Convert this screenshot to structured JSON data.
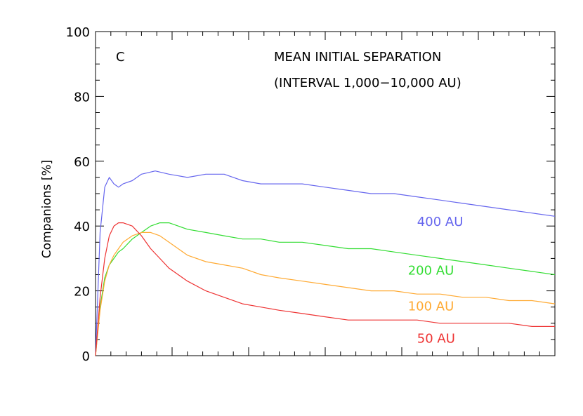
{
  "chart_data": {
    "type": "line",
    "panel_label": "C",
    "title_lines": [
      "MEAN INITIAL SEPARATION",
      "(INTERVAL 1,000−10,000 AU)"
    ],
    "xlabel": "",
    "ylabel": "Companions [%]",
    "xlim": [
      0,
      1
    ],
    "ylim": [
      0,
      100
    ],
    "yticks": [
      0,
      20,
      40,
      60,
      80,
      100
    ],
    "ytick_labels": [
      "0",
      "20",
      "40",
      "60",
      "80",
      "100"
    ],
    "x_tick_labels_shown": false,
    "grid": false,
    "legend": "inline-labels-right",
    "series": [
      {
        "name": "400 AU",
        "label": "400 AU",
        "color": "#6666ee",
        "label_pos": {
          "x": 0.7,
          "y": 40
        },
        "x": [
          0,
          0.01,
          0.02,
          0.03,
          0.04,
          0.05,
          0.06,
          0.08,
          0.1,
          0.13,
          0.16,
          0.2,
          0.24,
          0.28,
          0.32,
          0.36,
          0.4,
          0.45,
          0.5,
          0.55,
          0.6,
          0.65,
          0.7,
          0.75,
          0.8,
          0.85,
          0.9,
          0.95,
          1.0
        ],
        "y": [
          0,
          38,
          52,
          55,
          53,
          52,
          53,
          54,
          56,
          57,
          56,
          55,
          56,
          56,
          54,
          53,
          53,
          53,
          52,
          51,
          50,
          50,
          49,
          48,
          47,
          46,
          45,
          44,
          43
        ]
      },
      {
        "name": "200 AU",
        "label": "200 AU",
        "color": "#33dd33",
        "label_pos": {
          "x": 0.68,
          "y": 25
        },
        "x": [
          0,
          0.01,
          0.02,
          0.03,
          0.04,
          0.05,
          0.06,
          0.08,
          0.1,
          0.12,
          0.14,
          0.16,
          0.18,
          0.2,
          0.24,
          0.28,
          0.32,
          0.36,
          0.4,
          0.45,
          0.5,
          0.55,
          0.6,
          0.65,
          0.7,
          0.75,
          0.8,
          0.85,
          0.9,
          0.95,
          1.0
        ],
        "y": [
          0,
          15,
          24,
          28,
          30,
          32,
          33,
          36,
          38,
          40,
          41,
          41,
          40,
          39,
          38,
          37,
          36,
          36,
          35,
          35,
          34,
          33,
          33,
          32,
          31,
          30,
          29,
          28,
          27,
          26,
          25
        ]
      },
      {
        "name": "100 AU",
        "label": "100 AU",
        "color": "#ffaa33",
        "label_pos": {
          "x": 0.68,
          "y": 14
        },
        "x": [
          0,
          0.01,
          0.02,
          0.03,
          0.04,
          0.05,
          0.06,
          0.08,
          0.1,
          0.12,
          0.14,
          0.16,
          0.18,
          0.2,
          0.24,
          0.28,
          0.32,
          0.36,
          0.4,
          0.45,
          0.5,
          0.55,
          0.6,
          0.65,
          0.7,
          0.75,
          0.8,
          0.85,
          0.9,
          0.95,
          1.0
        ],
        "y": [
          0,
          14,
          23,
          28,
          31,
          33,
          35,
          37,
          38,
          38,
          37,
          35,
          33,
          31,
          29,
          28,
          27,
          25,
          24,
          23,
          22,
          21,
          20,
          20,
          19,
          19,
          18,
          18,
          17,
          17,
          16
        ]
      },
      {
        "name": "50 AU",
        "label": "50 AU",
        "color": "#ee3333",
        "label_pos": {
          "x": 0.7,
          "y": 4
        },
        "x": [
          0,
          0.01,
          0.02,
          0.03,
          0.04,
          0.05,
          0.06,
          0.08,
          0.1,
          0.12,
          0.14,
          0.16,
          0.18,
          0.2,
          0.24,
          0.28,
          0.32,
          0.36,
          0.4,
          0.45,
          0.5,
          0.55,
          0.6,
          0.65,
          0.7,
          0.75,
          0.8,
          0.85,
          0.9,
          0.95,
          1.0
        ],
        "y": [
          0,
          18,
          30,
          37,
          40,
          41,
          41,
          40,
          37,
          33,
          30,
          27,
          25,
          23,
          20,
          18,
          16,
          15,
          14,
          13,
          12,
          11,
          11,
          11,
          11,
          10,
          10,
          10,
          10,
          9,
          9
        ]
      }
    ]
  }
}
